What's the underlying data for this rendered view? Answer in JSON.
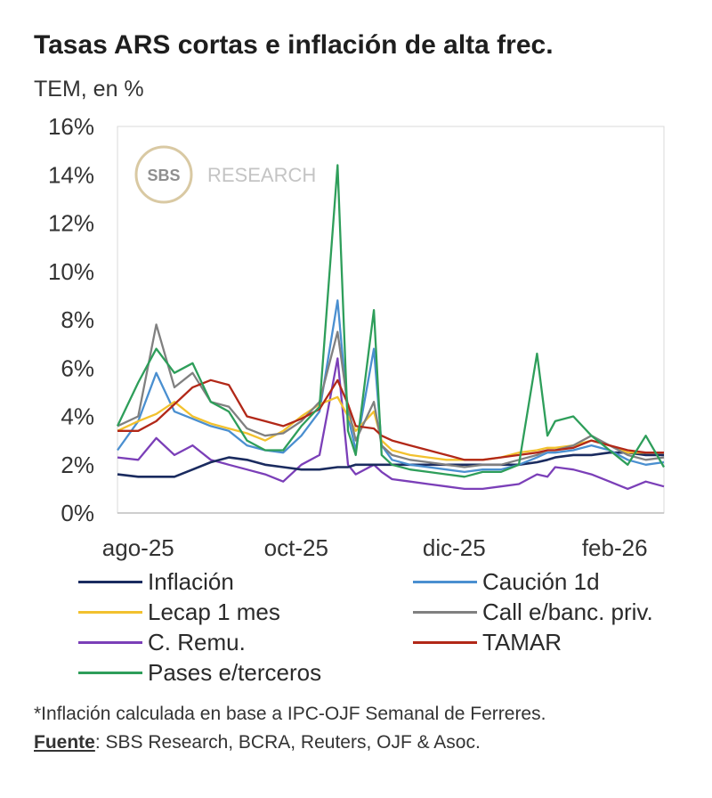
{
  "header": {
    "title": "Tasas ARS cortas e inflación de alta frec.",
    "subtitle": "TEM, en %"
  },
  "watermark": {
    "logo_text": "SBS",
    "text": "RESEARCH"
  },
  "footer": {
    "footnote": "*Inflación calculada en base a IPC-OJF Semanal de Ferreres.",
    "source_label": "Fuente",
    "source_text": ": SBS Research, BCRA, Reuters, OJF & Asoc."
  },
  "chart_data": {
    "type": "line",
    "title": "Tasas ARS cortas e inflación de alta frec.",
    "ylabel": "TEM, en %",
    "ylim": [
      0,
      16
    ],
    "yticks": [
      0,
      2,
      4,
      6,
      8,
      10,
      12,
      14,
      16
    ],
    "ytick_labels": [
      "0%",
      "2%",
      "4%",
      "6%",
      "8%",
      "10%",
      "12%",
      "14%",
      "16%"
    ],
    "xlim": [
      "2025-07-24",
      "2026-02-20"
    ],
    "xticks": [
      "2025-08-01",
      "2025-10-01",
      "2025-12-01",
      "2026-02-01"
    ],
    "xtick_labels": [
      "ago-25",
      "oct-25",
      "dic-25",
      "feb-26"
    ],
    "grid": false,
    "legend_position": "bottom",
    "x": [
      "2025-07-24",
      "2025-08-01",
      "2025-08-08",
      "2025-08-15",
      "2025-08-22",
      "2025-08-29",
      "2025-09-05",
      "2025-09-12",
      "2025-09-19",
      "2025-09-26",
      "2025-10-03",
      "2025-10-10",
      "2025-10-17",
      "2025-10-21",
      "2025-10-24",
      "2025-10-31",
      "2025-11-03",
      "2025-11-07",
      "2025-11-14",
      "2025-11-21",
      "2025-11-28",
      "2025-12-05",
      "2025-12-12",
      "2025-12-19",
      "2025-12-26",
      "2026-01-02",
      "2026-01-06",
      "2026-01-09",
      "2026-01-16",
      "2026-01-23",
      "2026-01-30",
      "2026-02-06",
      "2026-02-13",
      "2026-02-20"
    ],
    "series": [
      {
        "name": "Inflación",
        "color": "#1a2b5f",
        "values": [
          1.6,
          1.5,
          1.5,
          1.5,
          1.8,
          2.1,
          2.3,
          2.2,
          2.0,
          1.9,
          1.8,
          1.8,
          1.9,
          1.9,
          2.0,
          2.0,
          2.0,
          2.0,
          2.0,
          2.0,
          2.0,
          2.0,
          2.0,
          2.0,
          2.0,
          2.1,
          2.2,
          2.3,
          2.4,
          2.4,
          2.5,
          2.5,
          2.4,
          2.4
        ]
      },
      {
        "name": "Caución 1d",
        "color": "#4a8fd0",
        "values": [
          2.6,
          3.8,
          5.8,
          4.2,
          3.9,
          3.6,
          3.4,
          2.8,
          2.6,
          2.5,
          3.2,
          4.2,
          8.8,
          4.0,
          2.6,
          6.8,
          2.8,
          2.2,
          2.0,
          1.9,
          1.8,
          1.7,
          1.8,
          1.8,
          2.0,
          2.3,
          2.5,
          2.5,
          2.6,
          2.8,
          2.6,
          2.2,
          2.0,
          2.1
        ]
      },
      {
        "name": "Lecap 1 mes",
        "color": "#f2c12e",
        "values": [
          3.4,
          3.8,
          4.1,
          4.6,
          4.0,
          3.7,
          3.5,
          3.3,
          3.0,
          3.4,
          4.0,
          4.5,
          4.8,
          4.0,
          3.4,
          4.2,
          3.0,
          2.6,
          2.4,
          2.3,
          2.2,
          2.2,
          2.2,
          2.3,
          2.5,
          2.6,
          2.7,
          2.7,
          2.8,
          3.0,
          2.8,
          2.5,
          2.5,
          2.5
        ]
      },
      {
        "name": "Call e/banc. priv.",
        "color": "#808080",
        "values": [
          3.6,
          4.0,
          7.8,
          5.2,
          5.8,
          4.6,
          4.4,
          3.5,
          3.2,
          3.3,
          3.8,
          4.6,
          7.5,
          4.4,
          3.0,
          4.6,
          2.8,
          2.4,
          2.2,
          2.1,
          2.0,
          1.9,
          2.0,
          2.0,
          2.2,
          2.4,
          2.6,
          2.6,
          2.8,
          3.2,
          2.8,
          2.4,
          2.2,
          2.3
        ]
      },
      {
        "name": "C. Remu.",
        "color": "#7b3fb8",
        "values": [
          2.3,
          2.2,
          3.1,
          2.4,
          2.8,
          2.2,
          2.0,
          1.8,
          1.6,
          1.3,
          2.0,
          2.4,
          6.4,
          2.0,
          1.6,
          2.0,
          1.7,
          1.4,
          1.3,
          1.2,
          1.1,
          1.0,
          1.0,
          1.1,
          1.2,
          1.6,
          1.5,
          1.9,
          1.8,
          1.6,
          1.3,
          1.0,
          1.3,
          1.1
        ]
      },
      {
        "name": "TAMAR",
        "color": "#b22818",
        "values": [
          3.4,
          3.4,
          3.8,
          4.5,
          5.2,
          5.5,
          5.3,
          4.0,
          3.8,
          3.6,
          3.9,
          4.3,
          5.5,
          4.5,
          3.6,
          3.5,
          3.2,
          3.0,
          2.8,
          2.6,
          2.4,
          2.2,
          2.2,
          2.3,
          2.4,
          2.5,
          2.6,
          2.6,
          2.7,
          3.0,
          2.8,
          2.6,
          2.5,
          2.5
        ]
      },
      {
        "name": "Pases e/terceros",
        "color": "#2e9e5a",
        "values": [
          3.6,
          5.4,
          6.8,
          5.8,
          6.2,
          4.6,
          4.2,
          3.0,
          2.6,
          2.6,
          3.6,
          4.4,
          14.4,
          3.4,
          2.4,
          8.4,
          2.4,
          2.0,
          1.8,
          1.7,
          1.6,
          1.5,
          1.7,
          1.7,
          2.0,
          6.6,
          3.2,
          3.8,
          4.0,
          3.2,
          2.6,
          2.0,
          3.2,
          1.9
        ]
      }
    ]
  }
}
